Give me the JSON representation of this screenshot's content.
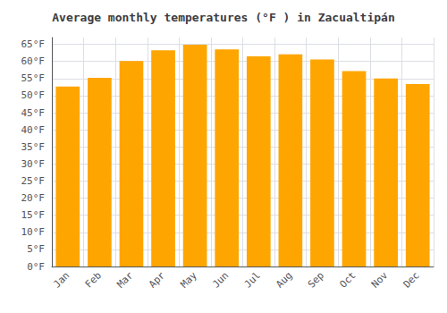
{
  "chart_data": {
    "type": "bar",
    "title": "Average monthly temperatures (°F ) in Zacualtipán",
    "categories": [
      "Jan",
      "Feb",
      "Mar",
      "Apr",
      "May",
      "Jun",
      "Jul",
      "Aug",
      "Sep",
      "Oct",
      "Nov",
      "Dec"
    ],
    "values": [
      52.7,
      55.2,
      60.1,
      63.3,
      64.9,
      63.5,
      61.5,
      62.1,
      60.6,
      57.2,
      55.0,
      53.4
    ],
    "color": "#FFA500",
    "ylim": [
      0,
      67
    ],
    "yticks": [
      {
        "value": 0,
        "label": "0°F"
      },
      {
        "value": 5,
        "label": "5°F"
      },
      {
        "value": 10,
        "label": "10°F"
      },
      {
        "value": 15,
        "label": "15°F"
      },
      {
        "value": 20,
        "label": "20°F"
      },
      {
        "value": 25,
        "label": "25°F"
      },
      {
        "value": 30,
        "label": "30°F"
      },
      {
        "value": 35,
        "label": "35°F"
      },
      {
        "value": 40,
        "label": "40°F"
      },
      {
        "value": 45,
        "label": "45°F"
      },
      {
        "value": 50,
        "label": "50°F"
      },
      {
        "value": 55,
        "label": "55°F"
      },
      {
        "value": 60,
        "label": "60°F"
      },
      {
        "value": 65,
        "label": "65°F"
      }
    ],
    "grid": true
  }
}
